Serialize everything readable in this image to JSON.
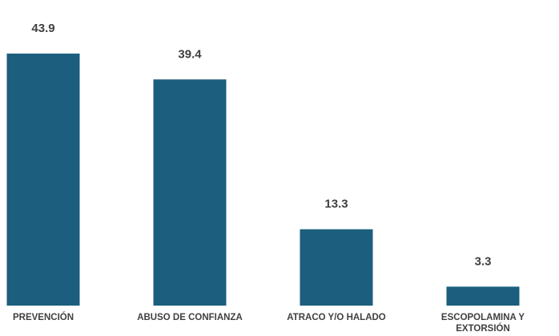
{
  "chart_data": {
    "type": "bar",
    "categories": [
      [
        "PREVENCIÓN"
      ],
      [
        "ABUSO DE CONFIANZA"
      ],
      [
        "ATRACO Y/O HALADO"
      ],
      [
        "ESCOPOLAMINA Y",
        "EXTORSIÓN"
      ]
    ],
    "values": [
      43.9,
      39.4,
      13.3,
      3.3
    ],
    "value_labels": [
      "43.9",
      "39.4",
      "13.3",
      "3.3"
    ],
    "bar_color": "#1b5e7e",
    "label_color": "#404040",
    "grid": false,
    "legend": "none"
  }
}
